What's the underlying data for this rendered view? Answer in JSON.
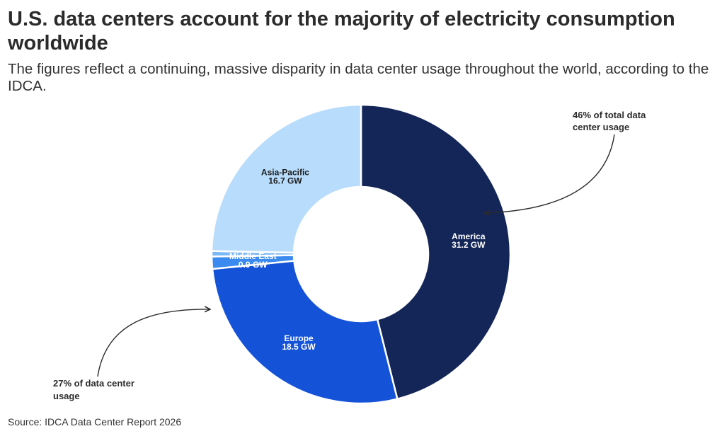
{
  "title": "U.S. data centers account for the majority of electricity consumption worldwide",
  "subtitle": "The figures reflect a continuing, massive disparity in data center usage throughout the world, according to the IDCA.",
  "source": "Source: IDCA Data Center Report 2026",
  "chart_data": {
    "type": "pie",
    "variant": "donut",
    "unit": "GW",
    "slices": [
      {
        "name": "America",
        "value": 31.2,
        "label": "31.2 GW",
        "color": "#142657",
        "text_color": "#ffffff"
      },
      {
        "name": "Europe",
        "value": 18.5,
        "label": "18.5 GW",
        "color": "#1452d8",
        "text_color": "#ffffff"
      },
      {
        "name": "Middle East",
        "value": 0.9,
        "label": "0.9 GW",
        "color": "#3b8af0",
        "text_color": "#ffffff"
      },
      {
        "name": "",
        "value": 0.4,
        "label": "",
        "color": "#7ab8f7",
        "text_color": "#ffffff"
      },
      {
        "name": "Asia-Pacific",
        "value": 16.7,
        "label": "16.7 GW",
        "color": "#b8dcfb",
        "text_color": "#1a1a1a"
      }
    ],
    "annotations": [
      {
        "lines": [
          "46% of total data",
          "center usage"
        ],
        "points_to": "America"
      },
      {
        "lines": [
          "27% of data center",
          "usage"
        ],
        "points_to": "Europe"
      }
    ]
  }
}
